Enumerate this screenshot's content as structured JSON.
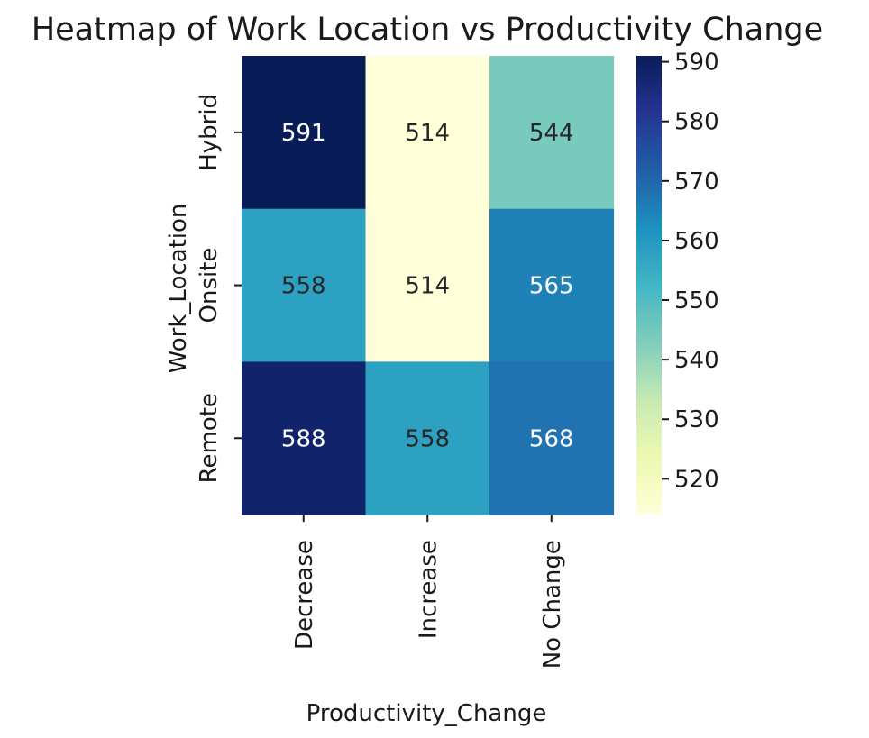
{
  "chart_data": {
    "type": "heatmap",
    "title": "Heatmap of Work Location vs Productivity Change",
    "xlabel": "Productivity_Change",
    "ylabel": "Work_Location",
    "x_categories": [
      "Decrease",
      "Increase",
      "No Change"
    ],
    "y_categories": [
      "Hybrid",
      "Onsite",
      "Remote"
    ],
    "values": [
      [
        591,
        514,
        544
      ],
      [
        558,
        514,
        565
      ],
      [
        588,
        558,
        568
      ]
    ],
    "colormap": "YlGnBu",
    "vmin": 514,
    "vmax": 591,
    "colorbar_ticks": [
      520,
      530,
      540,
      550,
      560,
      570,
      580,
      590
    ],
    "annotate": true,
    "colors": {
      "text_dark": "#262626",
      "text_light": "#ffffff"
    }
  }
}
